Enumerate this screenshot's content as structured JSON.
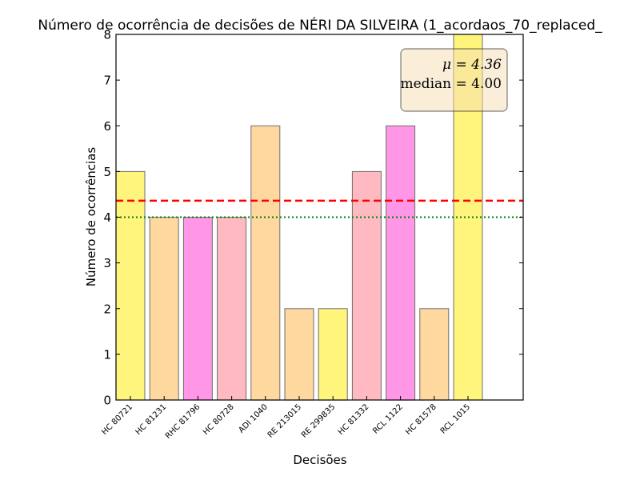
{
  "chart_data": {
    "type": "bar",
    "title": "Número de ocorrência de decisões de NÉRI DA SILVEIRA (1_acordaos_70_replaced_",
    "xlabel": "Decisões",
    "ylabel": "Número de ocorrências",
    "ylim": [
      0,
      8
    ],
    "yticks": [
      "0",
      "1",
      "2",
      "3",
      "4",
      "5",
      "6",
      "7",
      "8"
    ],
    "grid": false,
    "categories": [
      "HC 80721",
      "HC 81231",
      "RHC 81796",
      "HC 80728",
      "ADI 1040",
      "RE 213015",
      "RE 299835",
      "HC 81332",
      "RCL 1122",
      "HC 81578",
      "RCL 1015"
    ],
    "values": [
      5,
      4,
      4,
      4,
      6,
      2,
      2,
      5,
      6,
      2,
      8
    ],
    "bar_colors": [
      "#fff47c",
      "#ffd8a0",
      "#ff96e6",
      "#ffb9c1",
      "#ffd8a0",
      "#ffd8a0",
      "#fff47c",
      "#ffb9c1",
      "#ff96e6",
      "#ffd8a0",
      "#fff47c"
    ],
    "mean": 4.36,
    "median": 4.0,
    "mean_line_color": "#ff0000",
    "median_line_color": "#008000",
    "stats_box": {
      "mean_label": "μ = 4.36",
      "median_label": "median = 4.00",
      "placement": "top-right",
      "background": "#f5deb3"
    }
  }
}
